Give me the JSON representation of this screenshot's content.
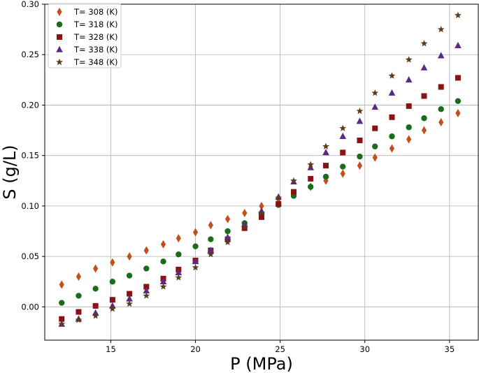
{
  "chart_data": {
    "type": "scatter",
    "title": "",
    "xlabel": "P (MPa)",
    "ylabel": "S (g/L)",
    "xlim": [
      11.1,
      36.7
    ],
    "ylim": [
      -0.033,
      0.3
    ],
    "xticks": [
      15,
      20,
      25,
      30,
      35
    ],
    "yticks": [
      0.0,
      0.05,
      0.1,
      0.15,
      0.2,
      0.25,
      0.3
    ],
    "xtick_labels": [
      "15",
      "20",
      "25",
      "30",
      "35"
    ],
    "ytick_labels": [
      "0.00",
      "0.05",
      "0.10",
      "0.15",
      "0.20",
      "0.25",
      "0.30"
    ],
    "grid": true,
    "legend_position": "top-left",
    "x": [
      12.1,
      13.1,
      14.1,
      15.1,
      16.1,
      17.1,
      18.1,
      19.0,
      20.0,
      20.9,
      21.9,
      22.9,
      23.9,
      24.9,
      25.8,
      26.8,
      27.7,
      28.7,
      29.7,
      30.6,
      31.6,
      32.6,
      33.5,
      34.5,
      35.5
    ],
    "series": [
      {
        "name": "T= 308 (K)",
        "marker": "diamond",
        "color": "#c0501c",
        "values": [
          0.022,
          0.03,
          0.038,
          0.044,
          0.05,
          0.056,
          0.062,
          0.068,
          0.074,
          0.081,
          0.087,
          0.093,
          0.1,
          0.107,
          0.113,
          0.119,
          0.125,
          0.132,
          0.14,
          0.148,
          0.157,
          0.166,
          0.175,
          0.183,
          0.192
        ]
      },
      {
        "name": "T= 318 (K)",
        "marker": "circle",
        "color": "#1a6b1a",
        "values": [
          0.004,
          0.011,
          0.018,
          0.025,
          0.031,
          0.038,
          0.045,
          0.052,
          0.06,
          0.067,
          0.075,
          0.083,
          0.092,
          0.101,
          0.11,
          0.119,
          0.129,
          0.139,
          0.149,
          0.159,
          0.169,
          0.178,
          0.187,
          0.196,
          0.204
        ]
      },
      {
        "name": "T= 328 (K)",
        "marker": "square",
        "color": "#8b1212",
        "values": [
          -0.012,
          -0.005,
          0.001,
          0.007,
          0.013,
          0.02,
          0.028,
          0.037,
          0.046,
          0.056,
          0.067,
          0.078,
          0.089,
          0.102,
          0.114,
          0.127,
          0.14,
          0.153,
          0.165,
          0.177,
          0.188,
          0.199,
          0.209,
          0.218,
          0.227
        ]
      },
      {
        "name": "T= 338 (K)",
        "marker": "triangle",
        "color": "#5a2a85",
        "values": [
          -0.017,
          -0.012,
          -0.006,
          0.001,
          0.008,
          0.016,
          0.025,
          0.034,
          0.045,
          0.056,
          0.069,
          0.082,
          0.095,
          0.109,
          0.124,
          0.138,
          0.153,
          0.169,
          0.184,
          0.198,
          0.212,
          0.225,
          0.237,
          0.249,
          0.259
        ]
      },
      {
        "name": "T= 348 (K)",
        "marker": "star",
        "color": "#5c3a1a",
        "values": [
          -0.017,
          -0.013,
          -0.009,
          -0.002,
          0.003,
          0.011,
          0.02,
          0.029,
          0.039,
          0.052,
          0.064,
          0.079,
          0.093,
          0.108,
          0.125,
          0.141,
          0.159,
          0.177,
          0.194,
          0.212,
          0.229,
          0.245,
          0.261,
          0.275,
          0.289
        ]
      }
    ]
  }
}
